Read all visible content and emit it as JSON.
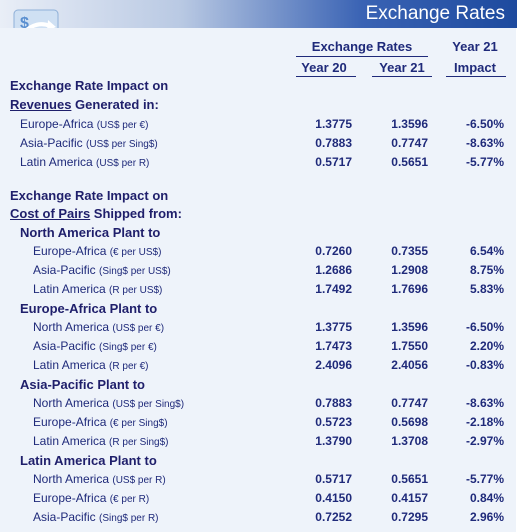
{
  "header": {
    "title": "Exchange Rates"
  },
  "columns": {
    "group_label": "Exchange Rates",
    "year_a": "Year 20",
    "year_b": "Year 21",
    "impact_top": "Year 21",
    "impact_bottom": "Impact"
  },
  "revenues": {
    "title_line1": "Exchange Rate Impact on",
    "title_u": "Revenues",
    "title_rest": " Generated in:",
    "rows": [
      {
        "name": "Europe-Africa",
        "unit": "(US$ per €)",
        "y20": "1.3775",
        "y21": "1.3596",
        "impact": "-6.50%"
      },
      {
        "name": "Asia-Pacific",
        "unit": "(US$ per Sing$)",
        "y20": "0.7883",
        "y21": "0.7747",
        "impact": "-8.63%"
      },
      {
        "name": "Latin America",
        "unit": "(US$ per R)",
        "y20": "0.5717",
        "y21": "0.5651",
        "impact": "-5.77%"
      }
    ]
  },
  "costs": {
    "title_line1": "Exchange Rate Impact on",
    "title_u": "Cost of Pairs",
    "title_rest": " Shipped from:",
    "plants": [
      {
        "title": "North America Plant to",
        "rows": [
          {
            "name": "Europe-Africa",
            "unit": "(€ per US$)",
            "y20": "0.7260",
            "y21": "0.7355",
            "impact": "6.54%"
          },
          {
            "name": "Asia-Pacific",
            "unit": "(Sing$ per US$)",
            "y20": "1.2686",
            "y21": "1.2908",
            "impact": "8.75%"
          },
          {
            "name": "Latin America",
            "unit": "(R per US$)",
            "y20": "1.7492",
            "y21": "1.7696",
            "impact": "5.83%"
          }
        ]
      },
      {
        "title": "Europe-Africa Plant to",
        "rows": [
          {
            "name": "North America",
            "unit": "(US$ per €)",
            "y20": "1.3775",
            "y21": "1.3596",
            "impact": "-6.50%"
          },
          {
            "name": "Asia-Pacific",
            "unit": "(Sing$ per €)",
            "y20": "1.7473",
            "y21": "1.7550",
            "impact": "2.20%"
          },
          {
            "name": "Latin America",
            "unit": "(R per €)",
            "y20": "2.4096",
            "y21": "2.4056",
            "impact": "-0.83%"
          }
        ]
      },
      {
        "title": "Asia-Pacific Plant to",
        "rows": [
          {
            "name": "North America",
            "unit": "(US$ per Sing$)",
            "y20": "0.7883",
            "y21": "0.7747",
            "impact": "-8.63%"
          },
          {
            "name": "Europe-Africa",
            "unit": "(€ per Sing$)",
            "y20": "0.5723",
            "y21": "0.5698",
            "impact": "-2.18%"
          },
          {
            "name": "Latin America",
            "unit": "(R per Sing$)",
            "y20": "1.3790",
            "y21": "1.3708",
            "impact": "-2.97%"
          }
        ]
      },
      {
        "title": "Latin America Plant to",
        "rows": [
          {
            "name": "North America",
            "unit": "(US$ per R)",
            "y20": "0.5717",
            "y21": "0.5651",
            "impact": "-5.77%"
          },
          {
            "name": "Europe-Africa",
            "unit": "(€ per R)",
            "y20": "0.4150",
            "y21": "0.4157",
            "impact": "0.84%"
          },
          {
            "name": "Asia-Pacific",
            "unit": "(Sing$ per R)",
            "y20": "0.7252",
            "y21": "0.7295",
            "impact": "2.96%"
          }
        ]
      }
    ]
  }
}
